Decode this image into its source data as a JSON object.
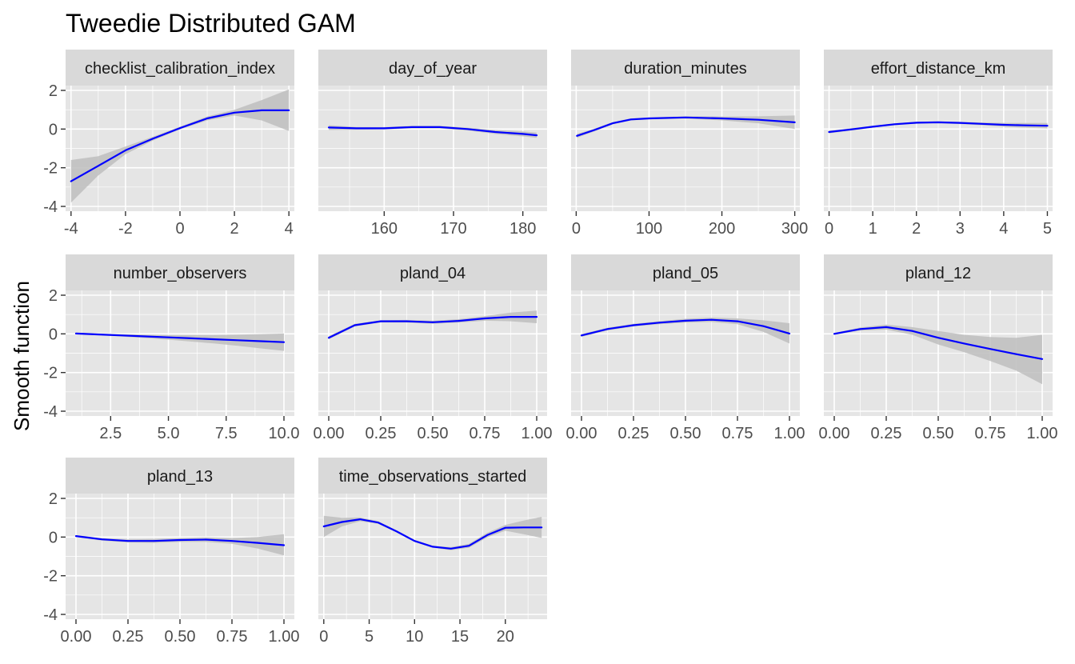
{
  "chart_data": {
    "type": "line",
    "title": "Tweedie Distributed GAM",
    "ylabel": "Smooth function",
    "ylim": [
      -4,
      2
    ],
    "yticks": [
      -4,
      -2,
      0,
      2
    ],
    "ytick_labels": [
      "-4",
      "-2",
      "0",
      "2"
    ],
    "facet_layout": {
      "columns": 4,
      "rows": 3
    },
    "colors": {
      "line": "#0000ff",
      "ribbon": "#bebebe",
      "panel_background": "#e5e5e5",
      "strip_background": "#d9d9d9",
      "grid": "#ffffff"
    },
    "facets": [
      {
        "name": "checklist_calibration_index",
        "xlim": [
          -4.2,
          4.2
        ],
        "xticks": [
          -4,
          -2,
          0,
          2,
          4
        ],
        "xtick_labels": [
          "-4",
          "-2",
          "0",
          "2",
          "4"
        ],
        "x": [
          -4,
          -3,
          -2,
          -1,
          0,
          1,
          2,
          3,
          4
        ],
        "y": [
          -2.7,
          -1.9,
          -1.1,
          -0.5,
          0.05,
          0.55,
          0.85,
          0.97,
          0.97
        ],
        "lower": [
          -3.8,
          -2.4,
          -1.3,
          -0.6,
          -0.02,
          0.45,
          0.7,
          0.45,
          -0.1
        ],
        "upper": [
          -1.6,
          -1.4,
          -0.9,
          -0.4,
          0.12,
          0.65,
          1.0,
          1.5,
          2.05
        ]
      },
      {
        "name": "day_of_year",
        "xlim": [
          150.5,
          183.5
        ],
        "xticks": [
          160,
          170,
          180
        ],
        "xtick_labels": [
          "160",
          "170",
          "180"
        ],
        "x": [
          152,
          156,
          160,
          164,
          168,
          172,
          176,
          180,
          182
        ],
        "y": [
          0.08,
          0.04,
          0.04,
          0.1,
          0.1,
          0.0,
          -0.15,
          -0.25,
          -0.32
        ],
        "lower": [
          -0.05,
          -0.03,
          -0.02,
          0.03,
          0.03,
          -0.07,
          -0.25,
          -0.38,
          -0.45
        ],
        "upper": [
          0.2,
          0.11,
          0.1,
          0.17,
          0.17,
          0.07,
          -0.05,
          -0.12,
          -0.18
        ]
      },
      {
        "name": "duration_minutes",
        "xlim": [
          -7,
          307
        ],
        "xticks": [
          0,
          100,
          200,
          300
        ],
        "xtick_labels": [
          "0",
          "100",
          "200",
          "300"
        ],
        "x": [
          1,
          25,
          50,
          75,
          100,
          150,
          200,
          250,
          300
        ],
        "y": [
          -0.35,
          -0.05,
          0.3,
          0.5,
          0.55,
          0.6,
          0.55,
          0.48,
          0.35
        ],
        "lower": [
          -0.45,
          -0.12,
          0.24,
          0.45,
          0.5,
          0.54,
          0.45,
          0.3,
          0.0
        ],
        "upper": [
          -0.25,
          0.02,
          0.36,
          0.55,
          0.6,
          0.66,
          0.65,
          0.66,
          0.7
        ]
      },
      {
        "name": "effort_distance_km",
        "xlim": [
          -0.12,
          5.12
        ],
        "xticks": [
          0,
          1,
          2,
          3,
          4,
          5
        ],
        "xtick_labels": [
          "0",
          "1",
          "2",
          "3",
          "4",
          "5"
        ],
        "x": [
          0,
          0.5,
          1,
          1.5,
          2,
          2.5,
          3,
          3.5,
          4,
          4.5,
          5
        ],
        "y": [
          -0.15,
          -0.02,
          0.12,
          0.25,
          0.33,
          0.35,
          0.32,
          0.27,
          0.22,
          0.19,
          0.17
        ],
        "lower": [
          -0.22,
          -0.08,
          0.07,
          0.2,
          0.28,
          0.3,
          0.26,
          0.2,
          0.12,
          0.07,
          0.03
        ],
        "upper": [
          -0.08,
          0.04,
          0.17,
          0.3,
          0.38,
          0.4,
          0.38,
          0.34,
          0.32,
          0.31,
          0.31
        ]
      },
      {
        "name": "number_observers",
        "xlim": [
          0.55,
          10.45
        ],
        "xticks": [
          2.5,
          5.0,
          7.5,
          10.0
        ],
        "xtick_labels": [
          "2.5",
          "5.0",
          "7.5",
          "10.0"
        ],
        "x": [
          1,
          2,
          3,
          4,
          5,
          6,
          7,
          8,
          9,
          10
        ],
        "y": [
          0.02,
          -0.03,
          -0.08,
          -0.13,
          -0.18,
          -0.23,
          -0.28,
          -0.33,
          -0.38,
          -0.43
        ],
        "lower": [
          -0.02,
          -0.07,
          -0.14,
          -0.22,
          -0.3,
          -0.4,
          -0.5,
          -0.62,
          -0.75,
          -0.88
        ],
        "upper": [
          0.06,
          0.01,
          -0.02,
          -0.04,
          -0.06,
          -0.06,
          -0.06,
          -0.04,
          -0.01,
          0.02
        ]
      },
      {
        "name": "pland_04",
        "xlim": [
          -0.05,
          1.05
        ],
        "xticks": [
          0.0,
          0.25,
          0.5,
          0.75,
          1.0
        ],
        "xtick_labels": [
          "0.00",
          "0.25",
          "0.50",
          "0.75",
          "1.00"
        ],
        "x": [
          0,
          0.125,
          0.25,
          0.375,
          0.5,
          0.625,
          0.75,
          0.875,
          1.0
        ],
        "y": [
          -0.2,
          0.45,
          0.65,
          0.65,
          0.6,
          0.67,
          0.8,
          0.88,
          0.88
        ],
        "lower": [
          -0.28,
          0.38,
          0.59,
          0.58,
          0.52,
          0.58,
          0.68,
          0.65,
          0.55
        ],
        "upper": [
          -0.12,
          0.52,
          0.71,
          0.72,
          0.68,
          0.76,
          0.92,
          1.1,
          1.2
        ]
      },
      {
        "name": "pland_05",
        "xlim": [
          -0.05,
          1.05
        ],
        "xticks": [
          0.0,
          0.25,
          0.5,
          0.75,
          1.0
        ],
        "xtick_labels": [
          "0.00",
          "0.25",
          "0.50",
          "0.75",
          "1.00"
        ],
        "x": [
          0,
          0.125,
          0.25,
          0.375,
          0.5,
          0.625,
          0.75,
          0.875,
          1.0
        ],
        "y": [
          -0.08,
          0.25,
          0.45,
          0.58,
          0.68,
          0.73,
          0.65,
          0.4,
          0.02
        ],
        "lower": [
          -0.15,
          0.18,
          0.38,
          0.5,
          0.58,
          0.62,
          0.5,
          0.1,
          -0.5
        ],
        "upper": [
          -0.01,
          0.32,
          0.52,
          0.66,
          0.78,
          0.84,
          0.8,
          0.7,
          0.55
        ]
      },
      {
        "name": "pland_12",
        "xlim": [
          -0.05,
          1.05
        ],
        "xticks": [
          0.0,
          0.25,
          0.5,
          0.75,
          1.0
        ],
        "xtick_labels": [
          "0.00",
          "0.25",
          "0.50",
          "0.75",
          "1.00"
        ],
        "x": [
          0,
          0.125,
          0.25,
          0.375,
          0.5,
          0.625,
          0.75,
          0.875,
          1.0
        ],
        "y": [
          0.0,
          0.25,
          0.35,
          0.15,
          -0.2,
          -0.5,
          -0.78,
          -1.05,
          -1.3
        ],
        "lower": [
          -0.05,
          0.17,
          0.22,
          -0.05,
          -0.55,
          -0.95,
          -1.4,
          -1.9,
          -2.6
        ],
        "upper": [
          0.05,
          0.33,
          0.48,
          0.35,
          0.15,
          -0.05,
          -0.16,
          -0.2,
          -0.05
        ]
      },
      {
        "name": "pland_13",
        "xlim": [
          -0.05,
          1.05
        ],
        "xticks": [
          0.0,
          0.25,
          0.5,
          0.75,
          1.0
        ],
        "xtick_labels": [
          "0.00",
          "0.25",
          "0.50",
          "0.75",
          "1.00"
        ],
        "x": [
          0,
          0.125,
          0.25,
          0.375,
          0.5,
          0.625,
          0.75,
          0.875,
          1.0
        ],
        "y": [
          0.05,
          -0.12,
          -0.2,
          -0.2,
          -0.15,
          -0.13,
          -0.2,
          -0.3,
          -0.42
        ],
        "lower": [
          0.0,
          -0.18,
          -0.28,
          -0.3,
          -0.25,
          -0.25,
          -0.35,
          -0.6,
          -0.95
        ],
        "upper": [
          0.1,
          -0.06,
          -0.12,
          -0.1,
          -0.05,
          -0.01,
          -0.05,
          0.0,
          0.15
        ]
      },
      {
        "name": "time_observations_started",
        "xlim": [
          -0.6,
          24.6
        ],
        "xticks": [
          0,
          5,
          10,
          15,
          20
        ],
        "xtick_labels": [
          "0",
          "5",
          "10",
          "15",
          "20"
        ],
        "x": [
          0,
          2,
          4,
          6,
          8,
          10,
          12,
          14,
          16,
          18,
          20,
          22,
          24
        ],
        "y": [
          0.55,
          0.78,
          0.92,
          0.75,
          0.3,
          -0.2,
          -0.5,
          -0.6,
          -0.45,
          0.1,
          0.48,
          0.5,
          0.5
        ],
        "lower": [
          0.0,
          0.55,
          0.82,
          0.68,
          0.25,
          -0.25,
          -0.55,
          -0.68,
          -0.55,
          -0.02,
          0.33,
          0.15,
          -0.05
        ],
        "upper": [
          1.1,
          1.0,
          1.02,
          0.82,
          0.35,
          -0.15,
          -0.45,
          -0.52,
          -0.35,
          0.22,
          0.63,
          0.85,
          1.05
        ]
      }
    ]
  }
}
